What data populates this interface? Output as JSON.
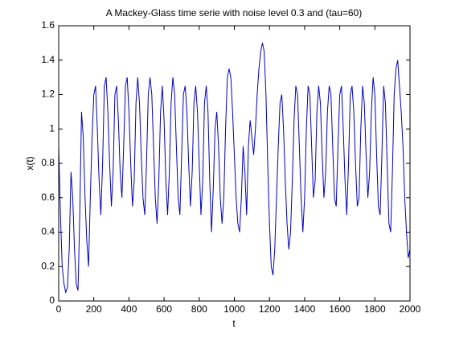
{
  "chart_data": {
    "type": "line",
    "title": "A Mackey-Glass time serie with noise level 0.3 and (tau=60)",
    "x_label": "t",
    "y_label": "x(t)",
    "xlim": [
      0,
      2000
    ],
    "ylim": [
      0,
      1.6
    ],
    "xticks": [
      0,
      200,
      400,
      600,
      800,
      1000,
      1200,
      1400,
      1600,
      1800,
      2000
    ],
    "yticks": [
      0,
      0.2,
      0.4,
      0.6,
      0.8,
      1,
      1.2,
      1.4,
      1.6
    ],
    "grid": false,
    "x": [
      0,
      10,
      20,
      30,
      40,
      50,
      60,
      70,
      80,
      90,
      100,
      110,
      120,
      130,
      140,
      150,
      160,
      170,
      180,
      190,
      200,
      210,
      220,
      230,
      240,
      250,
      260,
      270,
      280,
      290,
      300,
      310,
      320,
      330,
      340,
      350,
      360,
      370,
      380,
      390,
      400,
      410,
      420,
      430,
      440,
      450,
      460,
      470,
      480,
      490,
      500,
      510,
      520,
      530,
      540,
      550,
      560,
      570,
      580,
      590,
      600,
      610,
      620,
      630,
      640,
      650,
      660,
      670,
      680,
      690,
      700,
      710,
      720,
      730,
      740,
      750,
      760,
      770,
      780,
      790,
      800,
      810,
      820,
      830,
      840,
      850,
      860,
      870,
      880,
      890,
      900,
      910,
      920,
      930,
      940,
      950,
      960,
      970,
      980,
      990,
      1000,
      1010,
      1020,
      1030,
      1040,
      1050,
      1060,
      1070,
      1080,
      1090,
      1100,
      1110,
      1120,
      1130,
      1140,
      1150,
      1160,
      1170,
      1180,
      1190,
      1200,
      1210,
      1220,
      1230,
      1240,
      1250,
      1260,
      1270,
      1280,
      1290,
      1300,
      1310,
      1320,
      1330,
      1340,
      1350,
      1360,
      1370,
      1380,
      1390,
      1400,
      1410,
      1420,
      1430,
      1440,
      1450,
      1460,
      1470,
      1480,
      1490,
      1500,
      1510,
      1520,
      1530,
      1540,
      1550,
      1560,
      1570,
      1580,
      1590,
      1600,
      1610,
      1620,
      1630,
      1640,
      1650,
      1660,
      1670,
      1680,
      1690,
      1700,
      1710,
      1720,
      1730,
      1740,
      1750,
      1760,
      1770,
      1780,
      1790,
      1800,
      1810,
      1820,
      1830,
      1840,
      1850,
      1860,
      1870,
      1880,
      1890,
      1900,
      1910,
      1920,
      1930,
      1940,
      1950,
      1960,
      1970,
      1980,
      1990,
      2000
    ],
    "series": [
      {
        "color": "#0000c0",
        "values": [
          0.9,
          0.5,
          0.2,
          0.1,
          0.05,
          0.08,
          0.3,
          0.75,
          0.6,
          0.3,
          0.1,
          0.06,
          0.5,
          1.1,
          0.95,
          0.6,
          0.35,
          0.2,
          0.6,
          0.95,
          1.2,
          1.25,
          1.0,
          0.7,
          0.5,
          0.8,
          1.25,
          1.3,
          1.1,
          0.8,
          0.55,
          0.75,
          1.2,
          1.25,
          1.05,
          0.75,
          0.6,
          0.9,
          1.25,
          1.3,
          1.1,
          0.8,
          0.55,
          0.7,
          1.15,
          1.3,
          1.15,
          0.85,
          0.6,
          0.5,
          0.8,
          1.2,
          1.3,
          1.2,
          0.9,
          0.6,
          0.45,
          0.7,
          1.1,
          1.25,
          1.05,
          0.7,
          0.5,
          0.75,
          1.15,
          1.3,
          1.2,
          0.9,
          0.6,
          0.5,
          0.85,
          1.2,
          1.25,
          1.1,
          0.8,
          0.55,
          0.75,
          1.15,
          1.25,
          1.1,
          0.8,
          0.5,
          0.7,
          1.15,
          1.25,
          1.1,
          0.7,
          0.4,
          0.65,
          1.0,
          1.1,
          0.9,
          0.6,
          0.45,
          0.6,
          1.0,
          1.3,
          1.35,
          1.3,
          1.1,
          0.85,
          0.6,
          0.45,
          0.4,
          0.6,
          0.9,
          0.75,
          0.5,
          0.9,
          1.05,
          0.95,
          0.85,
          1.0,
          1.2,
          1.35,
          1.45,
          1.5,
          1.45,
          1.2,
          0.8,
          0.45,
          0.2,
          0.15,
          0.3,
          0.6,
          0.9,
          1.15,
          1.2,
          1.0,
          0.7,
          0.45,
          0.3,
          0.4,
          0.7,
          1.05,
          1.25,
          1.2,
          0.9,
          0.6,
          0.4,
          0.6,
          1.0,
          1.25,
          1.2,
          0.9,
          0.6,
          0.7,
          1.1,
          1.25,
          1.15,
          0.85,
          0.6,
          0.75,
          1.1,
          1.25,
          1.2,
          0.9,
          0.6,
          0.55,
          0.9,
          1.2,
          1.25,
          1.0,
          0.7,
          0.5,
          0.8,
          1.2,
          1.25,
          1.1,
          0.8,
          0.55,
          0.6,
          1.0,
          1.25,
          1.15,
          0.85,
          0.6,
          0.75,
          1.1,
          1.3,
          1.2,
          0.85,
          0.55,
          0.5,
          0.85,
          1.25,
          1.15,
          0.8,
          0.45,
          0.4,
          0.75,
          1.2,
          1.35,
          1.4,
          1.25,
          1.1,
          0.9,
          0.6,
          0.4,
          0.25,
          0.3
        ]
      }
    ]
  }
}
